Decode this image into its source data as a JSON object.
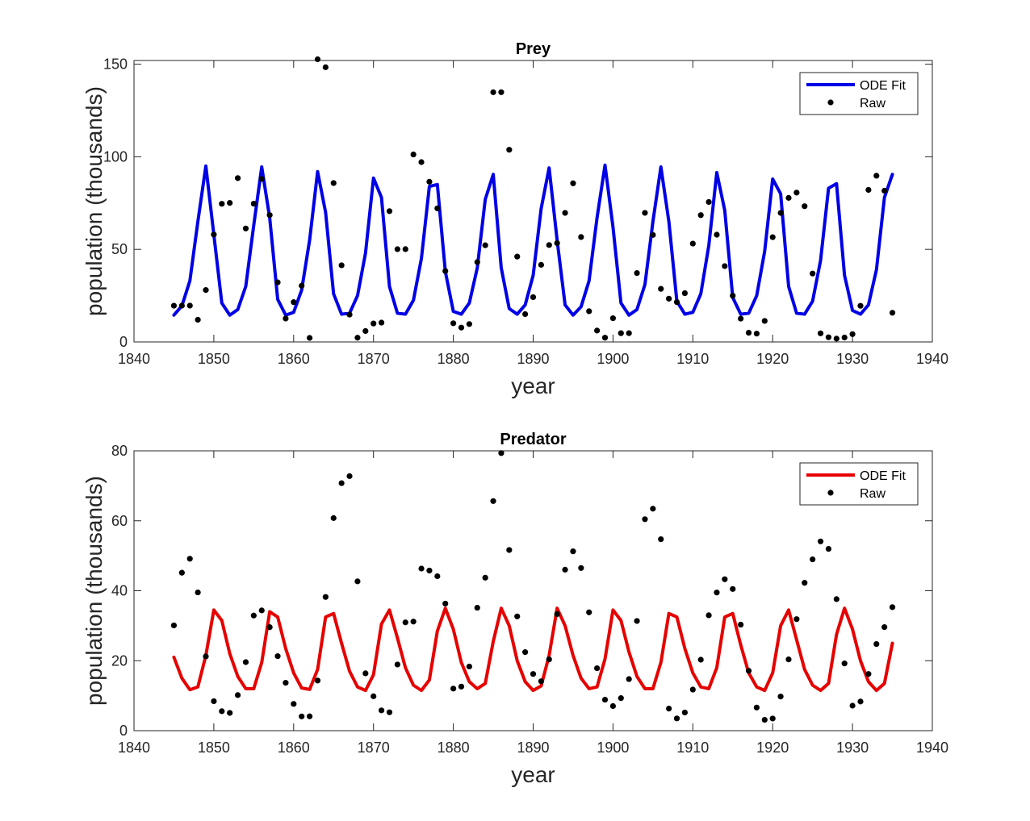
{
  "chart_data": [
    {
      "type": "line",
      "title": "Prey",
      "xlabel": "year",
      "ylabel": "population (thousands)",
      "xlim": [
        1840,
        1940
      ],
      "ylim": [
        0,
        152
      ],
      "xticks": [
        "1840",
        "1850",
        "1860",
        "1870",
        "1880",
        "1890",
        "1900",
        "1910",
        "1920",
        "1930",
        "1940"
      ],
      "yticks": [
        "0",
        "50",
        "100",
        "150"
      ],
      "legend": "top-right",
      "fit_color": "#0000e6",
      "series": [
        {
          "name": "ODE Fit",
          "style": "line",
          "x": [
            1845,
            1846,
            1847,
            1848,
            1849,
            1850,
            1851,
            1852,
            1853,
            1854,
            1855,
            1856,
            1857,
            1858,
            1859,
            1860,
            1861,
            1862,
            1863,
            1864,
            1865,
            1866,
            1867,
            1868,
            1869,
            1870,
            1871,
            1872,
            1873,
            1874,
            1875,
            1876,
            1877,
            1878,
            1879,
            1880,
            1881,
            1882,
            1883,
            1884,
            1885,
            1886,
            1887,
            1888,
            1889,
            1890,
            1891,
            1892,
            1893,
            1894,
            1895,
            1896,
            1897,
            1898,
            1899,
            1900,
            1901,
            1902,
            1903,
            1904,
            1905,
            1906,
            1907,
            1908,
            1909,
            1910,
            1911,
            1912,
            1913,
            1914,
            1915,
            1916,
            1917,
            1918,
            1919,
            1920,
            1921,
            1922,
            1923,
            1924,
            1925,
            1926,
            1927,
            1928,
            1929,
            1930,
            1931,
            1932,
            1933,
            1934,
            1935
          ],
          "y": [
            14.5,
            19.5,
            33,
            65,
            95,
            58,
            21,
            14.5,
            17.5,
            30,
            63,
            94.5,
            67,
            23,
            14.5,
            16,
            28,
            55,
            92,
            70,
            26,
            15,
            15.5,
            25,
            48,
            88.5,
            78,
            30,
            15.5,
            15,
            22.5,
            45,
            84,
            85,
            38,
            16.5,
            15,
            21,
            40,
            77,
            90.5,
            40,
            18,
            15,
            20,
            36,
            72,
            94,
            55,
            20,
            14.5,
            19,
            33,
            67,
            95.5,
            62,
            21,
            14.5,
            17.5,
            31,
            65,
            94.5,
            65,
            22,
            15,
            16,
            26,
            52,
            91.5,
            71,
            24,
            15,
            15.5,
            25,
            49,
            88,
            80,
            30,
            15.5,
            15,
            22,
            44,
            83,
            85.5,
            36,
            17,
            15,
            20,
            39,
            78,
            90.5
          ]
        },
        {
          "name": "Raw",
          "style": "markers",
          "x": [
            1845,
            1846,
            1847,
            1848,
            1849,
            1850,
            1851,
            1852,
            1853,
            1854,
            1855,
            1856,
            1857,
            1858,
            1859,
            1860,
            1861,
            1862,
            1863,
            1864,
            1865,
            1866,
            1867,
            1868,
            1869,
            1870,
            1871,
            1872,
            1873,
            1874,
            1875,
            1876,
            1877,
            1878,
            1879,
            1880,
            1881,
            1882,
            1883,
            1884,
            1885,
            1886,
            1887,
            1888,
            1889,
            1890,
            1891,
            1892,
            1893,
            1894,
            1895,
            1896,
            1897,
            1898,
            1899,
            1900,
            1901,
            1902,
            1903,
            1904,
            1905,
            1906,
            1907,
            1908,
            1909,
            1910,
            1911,
            1912,
            1913,
            1914,
            1915,
            1916,
            1917,
            1918,
            1919,
            1920,
            1921,
            1922,
            1923,
            1924,
            1925,
            1926,
            1927,
            1928,
            1929,
            1930,
            1931,
            1932,
            1933,
            1934,
            1935
          ],
          "y": [
            19.58,
            19.6,
            19.61,
            11.99,
            28.04,
            58,
            74.6,
            75.09,
            88.48,
            61.28,
            74.67,
            88.06,
            68.51,
            32.19,
            12.64,
            21.49,
            30.35,
            2.18,
            152.65,
            148.36,
            85.81,
            41.41,
            14.75,
            2.28,
            5.91,
            9.95,
            10.44,
            70.64,
            50.12,
            50.13,
            101.25,
            97.12,
            86.51,
            72.17,
            38.32,
            10.11,
            7.74,
            9.67,
            43.12,
            52.21,
            134.85,
            134.86,
            103.79,
            46.1,
            15.03,
            24.2,
            41.65,
            52.34,
            53.36,
            69.7,
            85.68,
            56.66,
            16.59,
            6.16,
            2.3,
            12.82,
            4.72,
            4.73,
            37.22,
            69.72,
            57.78,
            28.68,
            23.37,
            21.54,
            26.34,
            53.1,
            68.48,
            75.58,
            57.92,
            40.97,
            24.95,
            12.59,
            4.97,
            4.5,
            11.34,
            56.6,
            69.68,
            77.8,
            80.64,
            73.3,
            36.93,
            4.64,
            2.54,
            1.8,
            2.39,
            4.23,
            19.52,
            82.11,
            89.76,
            81.66,
            15.76
          ]
        }
      ]
    },
    {
      "type": "line",
      "title": "Predator",
      "xlabel": "year",
      "ylabel": "population (thousands)",
      "xlim": [
        1840,
        1940
      ],
      "ylim": [
        0,
        80
      ],
      "xticks": [
        "1840",
        "1850",
        "1860",
        "1870",
        "1880",
        "1890",
        "1900",
        "1910",
        "1920",
        "1930",
        "1940"
      ],
      "yticks": [
        "0",
        "20",
        "40",
        "60",
        "80"
      ],
      "legend": "top-right",
      "fit_color": "#e60000",
      "series": [
        {
          "name": "ODE Fit",
          "style": "line",
          "x": [
            1845,
            1846,
            1847,
            1848,
            1849,
            1850,
            1851,
            1852,
            1853,
            1854,
            1855,
            1856,
            1857,
            1858,
            1859,
            1860,
            1861,
            1862,
            1863,
            1864,
            1865,
            1866,
            1867,
            1868,
            1869,
            1870,
            1871,
            1872,
            1873,
            1874,
            1875,
            1876,
            1877,
            1878,
            1879,
            1880,
            1881,
            1882,
            1883,
            1884,
            1885,
            1886,
            1887,
            1888,
            1889,
            1890,
            1891,
            1892,
            1893,
            1894,
            1895,
            1896,
            1897,
            1898,
            1899,
            1900,
            1901,
            1902,
            1903,
            1904,
            1905,
            1906,
            1907,
            1908,
            1909,
            1910,
            1911,
            1912,
            1913,
            1914,
            1915,
            1916,
            1917,
            1918,
            1919,
            1920,
            1921,
            1922,
            1923,
            1924,
            1925,
            1926,
            1927,
            1928,
            1929,
            1930,
            1931,
            1932,
            1933,
            1934,
            1935
          ],
          "y": [
            21,
            15,
            11.7,
            12.5,
            21.5,
            34.5,
            31.5,
            22,
            15.5,
            12,
            12,
            19.5,
            34,
            32.5,
            23.5,
            16.5,
            12.2,
            11.8,
            17.5,
            32.5,
            33.5,
            25,
            17,
            12.5,
            11.5,
            16,
            30.5,
            34.5,
            26.5,
            18,
            13,
            11.5,
            14.5,
            28.5,
            35,
            29,
            19.5,
            14,
            12,
            13.5,
            25.5,
            35,
            30,
            20,
            14,
            11.5,
            12.8,
            21.5,
            35,
            30,
            21.5,
            15,
            12,
            12.5,
            20.5,
            34.5,
            31.5,
            22.5,
            15.5,
            12,
            12,
            19.5,
            33.5,
            32.5,
            23.5,
            16.5,
            12.5,
            12,
            18,
            32.5,
            33.5,
            24.5,
            16.5,
            12.5,
            11.5,
            16.5,
            30,
            34.5,
            26,
            17.5,
            13,
            11.5,
            13.5,
            27.5,
            35,
            29,
            20,
            14,
            11.5,
            13.5,
            25
          ]
        },
        {
          "name": "Raw",
          "style": "markers",
          "x": [
            1845,
            1846,
            1847,
            1848,
            1849,
            1850,
            1851,
            1852,
            1853,
            1854,
            1855,
            1856,
            1857,
            1858,
            1859,
            1860,
            1861,
            1862,
            1863,
            1864,
            1865,
            1866,
            1867,
            1868,
            1869,
            1870,
            1871,
            1872,
            1873,
            1874,
            1875,
            1876,
            1877,
            1878,
            1879,
            1880,
            1881,
            1882,
            1883,
            1884,
            1885,
            1886,
            1887,
            1888,
            1889,
            1890,
            1891,
            1892,
            1893,
            1894,
            1895,
            1896,
            1897,
            1898,
            1899,
            1900,
            1901,
            1902,
            1903,
            1904,
            1905,
            1906,
            1907,
            1908,
            1909,
            1910,
            1911,
            1912,
            1913,
            1914,
            1915,
            1916,
            1917,
            1918,
            1919,
            1920,
            1921,
            1922,
            1923,
            1924,
            1925,
            1926,
            1927,
            1928,
            1929,
            1930,
            1931,
            1932,
            1933,
            1934,
            1935
          ],
          "y": [
            30.09,
            45.15,
            49.15,
            39.52,
            21.23,
            8.42,
            5.56,
            5.08,
            10.17,
            19.6,
            32.91,
            34.38,
            29.59,
            21.3,
            13.69,
            7.65,
            4.08,
            4.09,
            14.33,
            38.22,
            60.78,
            70.77,
            72.77,
            42.68,
            16.39,
            9.83,
            5.8,
            5.26,
            18.91,
            30.95,
            31.18,
            46.34,
            45.77,
            44.15,
            36.33,
            12.03,
            12.6,
            18.34,
            35.14,
            43.73,
            65.64,
            79.35,
            51.65,
            32.67,
            22.45,
            16.21,
            14.12,
            20.38,
            33.33,
            46.02,
            51.26,
            46.5,
            33.83,
            17.85,
            8.86,
            7.03,
            9.31,
            14.75,
            31.36,
            60.45,
            63.46,
            54.74,
            6.32,
            3.5,
            5.2,
            11.75,
            20.29,
            32.99,
            39.5,
            43.29,
            40.5,
            30.31,
            17.12,
            6.62,
            3.1,
            3.47,
            9.75,
            20.38,
            31.88,
            42.27,
            48.98,
            54.11,
            51.98,
            37.61,
            19.22,
            7.15,
            8.33,
            16.2,
            24.77,
            29.61,
            35.31
          ]
        }
      ]
    }
  ]
}
